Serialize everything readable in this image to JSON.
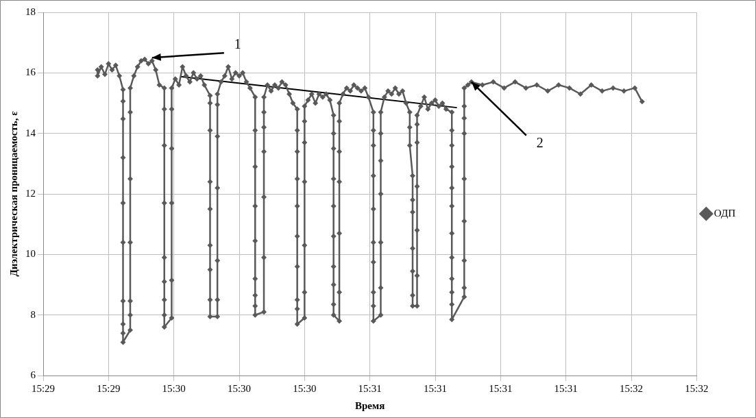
{
  "chart_data": {
    "type": "line",
    "xlabel": "Время",
    "ylabel": "Диэлектрическая проницаемость, ε",
    "xlim": [
      15.48417,
      15.53417
    ],
    "xticks": [
      {
        "value": 15.48417,
        "label": "15:29"
      },
      {
        "value": 15.48917,
        "label": "15:29"
      },
      {
        "value": 15.49417,
        "label": "15:30"
      },
      {
        "value": 15.49917,
        "label": "15:30"
      },
      {
        "value": 15.50417,
        "label": "15:30"
      },
      {
        "value": 15.50917,
        "label": "15:31"
      },
      {
        "value": 15.51417,
        "label": "15:31"
      },
      {
        "value": 15.51917,
        "label": "15:31"
      },
      {
        "value": 15.52417,
        "label": "15:31"
      },
      {
        "value": 15.52917,
        "label": "15:32"
      },
      {
        "value": 15.53417,
        "label": "15:32"
      }
    ],
    "ylim": [
      6,
      18
    ],
    "yticks": [
      6,
      8,
      10,
      12,
      14,
      16,
      18
    ],
    "grid": true,
    "legend": "right",
    "marker": "diamond",
    "line_style": "solid",
    "annotations": [
      {
        "text": "1",
        "x": 15.4925,
        "y": 16.5
      },
      {
        "text": "2",
        "x": 15.51694,
        "y": 15.7
      }
    ],
    "series": [
      {
        "name": "ОДП",
        "color": "#595959",
        "x": [
          15.48833,
          15.48833,
          15.48861,
          15.48889,
          15.48917,
          15.48944,
          15.48972,
          15.49,
          15.49028,
          15.49028,
          15.49028,
          15.49028,
          15.49028,
          15.49028,
          15.49028,
          15.49028,
          15.49028,
          15.49028,
          15.49083,
          15.49083,
          15.49083,
          15.49083,
          15.49083,
          15.49083,
          15.49083,
          15.49111,
          15.49139,
          15.49167,
          15.49194,
          15.49222,
          15.4925,
          15.49278,
          15.49306,
          15.49344,
          15.49344,
          15.49344,
          15.49344,
          15.49344,
          15.49344,
          15.49344,
          15.49344,
          15.49344,
          15.494,
          15.494,
          15.494,
          15.494,
          15.494,
          15.494,
          15.49428,
          15.49456,
          15.49483,
          15.49511,
          15.49539,
          15.49567,
          15.49594,
          15.49622,
          15.4965,
          15.49694,
          15.49694,
          15.49694,
          15.49694,
          15.49694,
          15.49694,
          15.49694,
          15.49694,
          15.49694,
          15.4975,
          15.4975,
          15.4975,
          15.4975,
          15.4975,
          15.4975,
          15.4975,
          15.49778,
          15.49806,
          15.49833,
          15.49861,
          15.49889,
          15.49917,
          15.49944,
          15.49972,
          15.5,
          15.50039,
          15.50039,
          15.50039,
          15.50039,
          15.50039,
          15.50039,
          15.50039,
          15.50039,
          15.50039,
          15.50106,
          15.50106,
          15.50106,
          15.50106,
          15.50106,
          15.50106,
          15.50106,
          15.50133,
          15.50161,
          15.50189,
          15.50217,
          15.50244,
          15.50272,
          15.503,
          15.50328,
          15.50361,
          15.50361,
          15.50361,
          15.50361,
          15.50361,
          15.50361,
          15.50361,
          15.50361,
          15.50361,
          15.50361,
          15.50417,
          15.50417,
          15.50417,
          15.50417,
          15.50417,
          15.50417,
          15.50417,
          15.50444,
          15.50472,
          15.505,
          15.50528,
          15.50556,
          15.50583,
          15.50611,
          15.50639,
          15.50639,
          15.50639,
          15.50639,
          15.50639,
          15.50639,
          15.50639,
          15.50639,
          15.50639,
          15.50639,
          15.50683,
          15.50683,
          15.50683,
          15.50683,
          15.50683,
          15.50683,
          15.50683,
          15.50711,
          15.50739,
          15.50767,
          15.50794,
          15.50822,
          15.5085,
          15.50878,
          15.50906,
          15.50944,
          15.50944,
          15.50944,
          15.50944,
          15.50944,
          15.50944,
          15.50944,
          15.50944,
          15.50944,
          15.50944,
          15.51,
          15.51,
          15.51,
          15.51,
          15.51,
          15.51,
          15.51,
          15.51028,
          15.51056,
          15.51083,
          15.51111,
          15.51139,
          15.51167,
          15.51194,
          15.51222,
          15.51222,
          15.51222,
          15.51244,
          15.51244,
          15.51244,
          15.51244,
          15.51244,
          15.51244,
          15.51244,
          15.51278,
          15.51278,
          15.51278,
          15.51278,
          15.51278,
          15.51278,
          15.51278,
          15.51306,
          15.51333,
          15.51361,
          15.51389,
          15.51417,
          15.51444,
          15.51472,
          15.515,
          15.51544,
          15.51544,
          15.51544,
          15.51544,
          15.51544,
          15.51544,
          15.51544,
          15.51544,
          15.51544,
          15.51544,
          15.51544,
          15.51544,
          15.51639,
          15.51639,
          15.51639,
          15.51639,
          15.51639,
          15.51639,
          15.51639,
          15.51639,
          15.51639,
          15.51667,
          15.51694,
          15.51778,
          15.51861,
          15.51944,
          15.52028,
          15.52111,
          15.52194,
          15.52278,
          15.52361,
          15.52444,
          15.52528,
          15.52611,
          15.52694,
          15.52778,
          15.52861,
          15.52944,
          15.53
        ],
        "values": [
          16.1,
          15.9,
          16.2,
          15.95,
          16.3,
          16.1,
          16.25,
          15.9,
          15.45,
          15.06,
          14.48,
          13.2,
          11.7,
          10.4,
          8.46,
          7.7,
          7.4,
          7.1,
          7.5,
          8.0,
          8.46,
          10.4,
          12.5,
          14.7,
          15.5,
          15.9,
          16.2,
          16.4,
          16.45,
          16.3,
          16.4,
          16.1,
          15.6,
          15.5,
          14.8,
          13.6,
          11.7,
          9.9,
          9.1,
          8.5,
          8.0,
          7.6,
          7.9,
          9.15,
          11.7,
          13.5,
          14.8,
          15.5,
          15.8,
          15.6,
          16.2,
          15.9,
          15.7,
          16.0,
          15.8,
          15.9,
          15.6,
          15.25,
          15.0,
          14.1,
          12.4,
          11.5,
          10.3,
          9.5,
          8.5,
          7.95,
          7.95,
          8.5,
          9.8,
          12.2,
          13.9,
          14.95,
          15.3,
          15.7,
          15.9,
          16.2,
          15.8,
          16.0,
          15.9,
          16.0,
          15.7,
          15.5,
          15.2,
          14.1,
          12.9,
          11.6,
          10.45,
          9.2,
          8.65,
          8.3,
          8.0,
          8.1,
          9.9,
          11.9,
          13.4,
          14.2,
          14.7,
          15.2,
          15.6,
          15.4,
          15.6,
          15.5,
          15.7,
          15.6,
          15.3,
          15.0,
          14.8,
          14.1,
          13.4,
          12.5,
          11.6,
          10.6,
          9.6,
          8.5,
          8.2,
          7.7,
          7.9,
          8.75,
          10.3,
          12.4,
          13.7,
          14.4,
          14.9,
          15.1,
          15.3,
          15.0,
          15.3,
          15.2,
          15.3,
          15.1,
          14.6,
          14.0,
          13.5,
          12.5,
          11.6,
          10.6,
          9.6,
          9.0,
          8.35,
          8.0,
          7.8,
          8.75,
          10.7,
          12.4,
          13.4,
          14.4,
          15.0,
          15.3,
          15.5,
          15.4,
          15.6,
          15.5,
          15.4,
          15.5,
          15.2,
          14.7,
          14.1,
          13.6,
          12.6,
          11.5,
          10.4,
          9.75,
          8.75,
          8.3,
          7.8,
          8.0,
          8.9,
          10.4,
          12.0,
          13.1,
          14.0,
          14.7,
          15.2,
          15.4,
          15.3,
          15.5,
          15.3,
          15.4,
          15.0,
          14.7,
          14.2,
          13.6,
          12.6,
          11.8,
          11.4,
          10.2,
          9.45,
          8.65,
          8.3,
          8.3,
          9.3,
          10.8,
          12.25,
          13.7,
          14.3,
          14.6,
          14.9,
          15.2,
          14.8,
          15.0,
          15.1,
          14.9,
          15.0,
          14.8,
          14.7,
          14.1,
          13.6,
          12.9,
          12.2,
          11.6,
          10.7,
          9.9,
          9.2,
          8.75,
          8.35,
          7.85,
          8.6,
          8.9,
          9.8,
          11.1,
          12.5,
          14.0,
          14.5,
          14.9,
          15.5,
          15.6,
          15.7,
          15.6,
          15.7,
          15.5,
          15.7,
          15.5,
          15.6,
          15.4,
          15.6,
          15.5,
          15.3,
          15.6,
          15.4,
          15.5,
          15.4,
          15.5,
          15.05
        ]
      },
      {
        "color": "#000000",
        "marker": "none",
        "x": [
          15.49467,
          15.51583
        ],
        "values": [
          15.88,
          14.85
        ]
      }
    ]
  }
}
